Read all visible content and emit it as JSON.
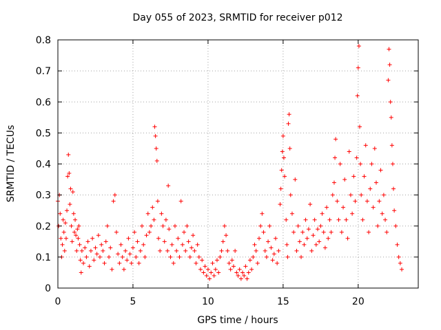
{
  "chart_data": {
    "type": "scatter",
    "title": "Day 055 of 2023, SRMTID for receiver p012",
    "xlabel": "GPS time / hours",
    "ylabel": "SRMTID / TECUs",
    "xlim": [
      0,
      24
    ],
    "ylim": [
      0,
      0.8
    ],
    "xticks": [
      0,
      5,
      10,
      15,
      20
    ],
    "xtick_labels": [
      "0",
      "5",
      "10",
      "15",
      "20"
    ],
    "yticks": [
      0,
      0.1,
      0.2,
      0.3,
      0.4,
      0.5,
      0.6,
      0.7,
      0.8
    ],
    "ytick_labels": [
      "0",
      "0.1",
      "0.2",
      "0.3",
      "0.4",
      "0.5",
      "0.6",
      "0.7",
      "0.8"
    ],
    "grid": true,
    "marker": "+",
    "color": "#ff0000",
    "series": [
      {
        "name": "SRMTID",
        "points": [
          [
            0.0,
            0.28
          ],
          [
            0.05,
            0.2
          ],
          [
            0.1,
            0.3
          ],
          [
            0.15,
            0.24
          ],
          [
            0.2,
            0.16
          ],
          [
            0.25,
            0.1
          ],
          [
            0.3,
            0.14
          ],
          [
            0.35,
            0.22
          ],
          [
            0.4,
            0.18
          ],
          [
            0.45,
            0.12
          ],
          [
            0.5,
            0.21
          ],
          [
            0.55,
            0.16
          ],
          [
            0.6,
            0.25
          ],
          [
            0.65,
            0.36
          ],
          [
            0.7,
            0.43
          ],
          [
            0.75,
            0.37
          ],
          [
            0.8,
            0.27
          ],
          [
            0.85,
            0.32
          ],
          [
            0.9,
            0.2
          ],
          [
            0.95,
            0.15
          ],
          [
            1.0,
            0.31
          ],
          [
            1.05,
            0.24
          ],
          [
            1.1,
            0.18
          ],
          [
            1.15,
            0.22
          ],
          [
            1.2,
            0.17
          ],
          [
            1.25,
            0.12
          ],
          [
            1.3,
            0.19
          ],
          [
            1.35,
            0.16
          ],
          [
            1.4,
            0.2
          ],
          [
            1.45,
            0.14
          ],
          [
            1.5,
            0.09
          ],
          [
            1.55,
            0.05
          ],
          [
            1.6,
            0.12
          ],
          [
            1.7,
            0.08
          ],
          [
            1.8,
            0.13
          ],
          [
            1.9,
            0.1
          ],
          [
            2.0,
            0.15
          ],
          [
            2.1,
            0.07
          ],
          [
            2.2,
            0.12
          ],
          [
            2.3,
            0.16
          ],
          [
            2.4,
            0.09
          ],
          [
            2.5,
            0.13
          ],
          [
            2.6,
            0.11
          ],
          [
            2.7,
            0.17
          ],
          [
            2.8,
            0.1
          ],
          [
            2.9,
            0.14
          ],
          [
            3.0,
            0.12
          ],
          [
            3.1,
            0.08
          ],
          [
            3.2,
            0.15
          ],
          [
            3.3,
            0.2
          ],
          [
            3.4,
            0.1
          ],
          [
            3.5,
            0.13
          ],
          [
            3.6,
            0.06
          ],
          [
            3.7,
            0.28
          ],
          [
            3.8,
            0.3
          ],
          [
            3.9,
            0.18
          ],
          [
            4.0,
            0.11
          ],
          [
            4.1,
            0.08
          ],
          [
            4.2,
            0.14
          ],
          [
            4.3,
            0.1
          ],
          [
            4.4,
            0.06
          ],
          [
            4.5,
            0.12
          ],
          [
            4.6,
            0.09
          ],
          [
            4.7,
            0.16
          ],
          [
            4.8,
            0.11
          ],
          [
            4.9,
            0.08
          ],
          [
            5.0,
            0.13
          ],
          [
            5.1,
            0.18
          ],
          [
            5.2,
            0.1
          ],
          [
            5.3,
            0.15
          ],
          [
            5.4,
            0.08
          ],
          [
            5.5,
            0.12
          ],
          [
            5.6,
            0.2
          ],
          [
            5.7,
            0.14
          ],
          [
            5.8,
            0.1
          ],
          [
            5.9,
            0.17
          ],
          [
            6.0,
            0.24
          ],
          [
            6.1,
            0.18
          ],
          [
            6.2,
            0.2
          ],
          [
            6.3,
            0.26
          ],
          [
            6.4,
            0.22
          ],
          [
            6.45,
            0.52
          ],
          [
            6.5,
            0.49
          ],
          [
            6.55,
            0.45
          ],
          [
            6.6,
            0.41
          ],
          [
            6.65,
            0.28
          ],
          [
            6.7,
            0.16
          ],
          [
            6.8,
            0.12
          ],
          [
            6.9,
            0.24
          ],
          [
            7.0,
            0.2
          ],
          [
            7.1,
            0.15
          ],
          [
            7.2,
            0.22
          ],
          [
            7.3,
            0.12
          ],
          [
            7.35,
            0.33
          ],
          [
            7.4,
            0.19
          ],
          [
            7.5,
            0.1
          ],
          [
            7.6,
            0.14
          ],
          [
            7.7,
            0.08
          ],
          [
            7.8,
            0.2
          ],
          [
            7.9,
            0.12
          ],
          [
            8.0,
            0.16
          ],
          [
            8.1,
            0.1
          ],
          [
            8.2,
            0.28
          ],
          [
            8.3,
            0.14
          ],
          [
            8.4,
            0.18
          ],
          [
            8.5,
            0.12
          ],
          [
            8.6,
            0.2
          ],
          [
            8.7,
            0.15
          ],
          [
            8.8,
            0.1
          ],
          [
            8.9,
            0.13
          ],
          [
            9.0,
            0.17
          ],
          [
            9.1,
            0.12
          ],
          [
            9.2,
            0.08
          ],
          [
            9.3,
            0.14
          ],
          [
            9.4,
            0.1
          ],
          [
            9.5,
            0.06
          ],
          [
            9.6,
            0.09
          ],
          [
            9.7,
            0.05
          ],
          [
            9.8,
            0.07
          ],
          [
            9.9,
            0.04
          ],
          [
            10.0,
            0.06
          ],
          [
            10.1,
            0.03
          ],
          [
            10.2,
            0.05
          ],
          [
            10.3,
            0.08
          ],
          [
            10.4,
            0.04
          ],
          [
            10.5,
            0.06
          ],
          [
            10.6,
            0.09
          ],
          [
            10.7,
            0.05
          ],
          [
            10.8,
            0.1
          ],
          [
            10.9,
            0.12
          ],
          [
            11.0,
            0.15
          ],
          [
            11.1,
            0.2
          ],
          [
            11.2,
            0.17
          ],
          [
            11.3,
            0.12
          ],
          [
            11.4,
            0.08
          ],
          [
            11.5,
            0.06
          ],
          [
            11.6,
            0.09
          ],
          [
            11.7,
            0.07
          ],
          [
            11.8,
            0.12
          ],
          [
            11.9,
            0.05
          ],
          [
            12.0,
            0.04
          ],
          [
            12.1,
            0.06
          ],
          [
            12.2,
            0.03
          ],
          [
            12.3,
            0.05
          ],
          [
            12.4,
            0.04
          ],
          [
            12.5,
            0.07
          ],
          [
            12.6,
            0.03
          ],
          [
            12.7,
            0.05
          ],
          [
            12.8,
            0.09
          ],
          [
            12.9,
            0.06
          ],
          [
            13.0,
            0.1
          ],
          [
            13.1,
            0.14
          ],
          [
            13.2,
            0.12
          ],
          [
            13.3,
            0.08
          ],
          [
            13.4,
            0.16
          ],
          [
            13.5,
            0.2
          ],
          [
            13.6,
            0.24
          ],
          [
            13.7,
            0.18
          ],
          [
            13.8,
            0.12
          ],
          [
            13.9,
            0.1
          ],
          [
            14.0,
            0.15
          ],
          [
            14.1,
            0.2
          ],
          [
            14.2,
            0.13
          ],
          [
            14.3,
            0.09
          ],
          [
            14.4,
            0.11
          ],
          [
            14.5,
            0.16
          ],
          [
            14.6,
            0.08
          ],
          [
            14.7,
            0.12
          ],
          [
            14.8,
            0.27
          ],
          [
            14.85,
            0.32
          ],
          [
            14.9,
            0.38
          ],
          [
            14.95,
            0.44
          ],
          [
            15.0,
            0.49
          ],
          [
            15.05,
            0.42
          ],
          [
            15.1,
            0.36
          ],
          [
            15.2,
            0.22
          ],
          [
            15.25,
            0.14
          ],
          [
            15.3,
            0.1
          ],
          [
            15.35,
            0.53
          ],
          [
            15.4,
            0.56
          ],
          [
            15.45,
            0.45
          ],
          [
            15.5,
            0.3
          ],
          [
            15.6,
            0.24
          ],
          [
            15.7,
            0.18
          ],
          [
            15.8,
            0.35
          ],
          [
            15.9,
            0.12
          ],
          [
            16.0,
            0.2
          ],
          [
            16.1,
            0.15
          ],
          [
            16.2,
            0.1
          ],
          [
            16.3,
            0.18
          ],
          [
            16.4,
            0.14
          ],
          [
            16.5,
            0.22
          ],
          [
            16.6,
            0.16
          ],
          [
            16.7,
            0.19
          ],
          [
            16.8,
            0.27
          ],
          [
            16.9,
            0.12
          ],
          [
            17.0,
            0.17
          ],
          [
            17.1,
            0.22
          ],
          [
            17.2,
            0.14
          ],
          [
            17.3,
            0.19
          ],
          [
            17.4,
            0.15
          ],
          [
            17.5,
            0.2
          ],
          [
            17.6,
            0.24
          ],
          [
            17.7,
            0.18
          ],
          [
            17.8,
            0.13
          ],
          [
            17.9,
            0.26
          ],
          [
            18.0,
            0.16
          ],
          [
            18.1,
            0.22
          ],
          [
            18.2,
            0.18
          ],
          [
            18.3,
            0.3
          ],
          [
            18.4,
            0.34
          ],
          [
            18.45,
            0.42
          ],
          [
            18.5,
            0.48
          ],
          [
            18.6,
            0.28
          ],
          [
            18.7,
            0.22
          ],
          [
            18.8,
            0.4
          ],
          [
            18.9,
            0.18
          ],
          [
            19.0,
            0.26
          ],
          [
            19.1,
            0.35
          ],
          [
            19.2,
            0.22
          ],
          [
            19.3,
            0.16
          ],
          [
            19.4,
            0.44
          ],
          [
            19.5,
            0.3
          ],
          [
            19.6,
            0.24
          ],
          [
            19.7,
            0.36
          ],
          [
            19.8,
            0.28
          ],
          [
            19.9,
            0.42
          ],
          [
            19.95,
            0.62
          ],
          [
            20.0,
            0.71
          ],
          [
            20.05,
            0.78
          ],
          [
            20.1,
            0.52
          ],
          [
            20.15,
            0.4
          ],
          [
            20.2,
            0.3
          ],
          [
            20.3,
            0.22
          ],
          [
            20.4,
            0.36
          ],
          [
            20.5,
            0.46
          ],
          [
            20.6,
            0.28
          ],
          [
            20.7,
            0.18
          ],
          [
            20.8,
            0.32
          ],
          [
            20.9,
            0.4
          ],
          [
            21.0,
            0.26
          ],
          [
            21.1,
            0.45
          ],
          [
            21.2,
            0.34
          ],
          [
            21.3,
            0.2
          ],
          [
            21.4,
            0.28
          ],
          [
            21.5,
            0.38
          ],
          [
            21.6,
            0.24
          ],
          [
            21.7,
            0.3
          ],
          [
            21.8,
            0.22
          ],
          [
            21.9,
            0.18
          ],
          [
            22.0,
            0.67
          ],
          [
            22.05,
            0.77
          ],
          [
            22.1,
            0.72
          ],
          [
            22.15,
            0.6
          ],
          [
            22.2,
            0.55
          ],
          [
            22.25,
            0.46
          ],
          [
            22.3,
            0.4
          ],
          [
            22.35,
            0.32
          ],
          [
            22.4,
            0.25
          ],
          [
            22.5,
            0.2
          ],
          [
            22.6,
            0.14
          ],
          [
            22.7,
            0.1
          ],
          [
            22.8,
            0.08
          ],
          [
            22.9,
            0.06
          ]
        ]
      }
    ]
  }
}
